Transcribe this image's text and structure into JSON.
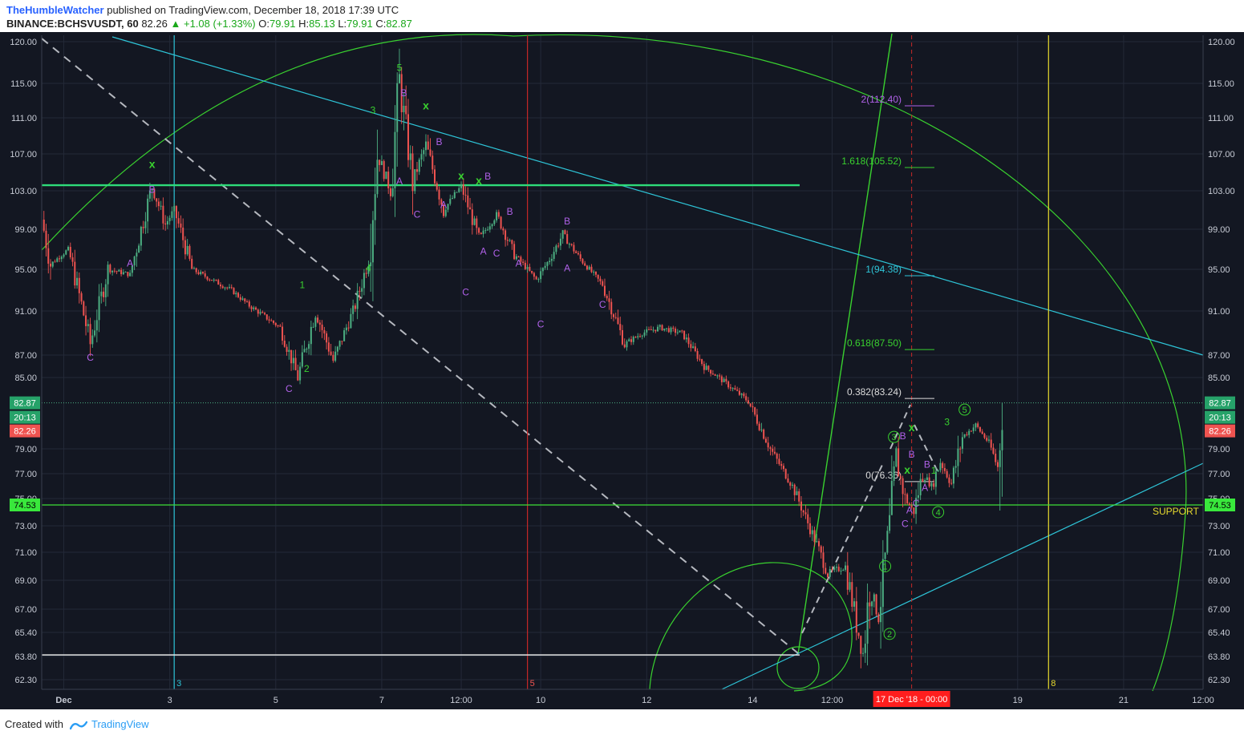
{
  "header": {
    "author": "TheHumbleWatcher",
    "published": "published on TradingView.com, December 18, 2018 17:39 UTC",
    "symbol": "BINANCE:BCHSVUSDT, 60",
    "last": "82.26",
    "change": "▲ +1.08 (+1.33%)",
    "o_label": "O:",
    "o": "79.91",
    "h_label": "H:",
    "h": "85.13",
    "l_label": "L:",
    "l": "79.91",
    "c_label": "C:",
    "c": "82.87"
  },
  "footer": {
    "created_with": "Created with",
    "brand": "TradingView"
  },
  "colors": {
    "up": "#4caf82",
    "down": "#ef5350",
    "background": "#131722",
    "fib_green": "#39d12f",
    "cyan": "#2ec5d8",
    "purple": "#b061e8",
    "yellow": "#e6d92e"
  },
  "chart_data": {
    "type": "candlestick",
    "title": "",
    "symbol": "BINANCE:BCHSVUSDT",
    "timeframe": "60",
    "xlabel": "",
    "ylabel": "",
    "ylim": [
      61.7,
      121
    ],
    "grid": true,
    "y_ticks": [
      "120.00",
      "115.00",
      "111.00",
      "107.00",
      "103.00",
      "99.00",
      "95.00",
      "91.00",
      "87.00",
      "85.00",
      "79.00",
      "77.00",
      "75.00",
      "73.00",
      "71.00",
      "69.00",
      "67.00",
      "65.40",
      "63.80",
      "62.30"
    ],
    "x_ticks": [
      "Dec",
      "3",
      "5",
      "7",
      "12:00",
      "10",
      "12",
      "14",
      "12:00",
      "19",
      "21",
      "12:00"
    ],
    "x_cursor_label": "17 Dec '18 - 00:00",
    "price_labels": {
      "close": "82.87",
      "countdown": "20:13",
      "last": "82.26",
      "support": "74.53"
    },
    "support_label": "SUPPORT",
    "vline_labels": [
      "3",
      "5",
      "8"
    ],
    "fib_levels": [
      {
        "ratio": "2",
        "value": 112.4,
        "label": "2(112.40)"
      },
      {
        "ratio": "1.618",
        "value": 105.52,
        "label": "1.618(105.52)"
      },
      {
        "ratio": "1",
        "value": 94.38,
        "label": "1(94.38)"
      },
      {
        "ratio": "0.618",
        "value": 87.5,
        "label": "0.618(87.50)"
      },
      {
        "ratio": "0.382",
        "value": 83.24,
        "label": "0.382(83.24)"
      },
      {
        "ratio": "0",
        "value": 76.36,
        "label": "0(76.36)"
      }
    ],
    "horizontal_levels": [
      {
        "name": "resistance",
        "value": 103.6
      },
      {
        "name": "support",
        "value": 74.53
      },
      {
        "name": "low",
        "value": 63.9
      }
    ],
    "price_path": [
      {
        "date": "2018-11-30 14:00",
        "price": 100.0
      },
      {
        "date": "2018-11-30 18:00",
        "price": 95.5
      },
      {
        "date": "2018-12-01 02:00",
        "price": 97.0
      },
      {
        "date": "2018-12-01 12:00",
        "price": 88.0
      },
      {
        "date": "2018-12-01 20:00",
        "price": 95.0
      },
      {
        "date": "2018-12-02 06:00",
        "price": 94.5
      },
      {
        "date": "2018-12-02 16:00",
        "price": 103.5
      },
      {
        "date": "2018-12-02 22:00",
        "price": 99.5
      },
      {
        "date": "2018-12-03 02:00",
        "price": 101.0
      },
      {
        "date": "2018-12-03 10:00",
        "price": 95.0
      },
      {
        "date": "2018-12-04 04:00",
        "price": 93.0
      },
      {
        "date": "2018-12-04 12:00",
        "price": 91.5
      },
      {
        "date": "2018-12-05 02:00",
        "price": 89.5
      },
      {
        "date": "2018-12-05 10:00",
        "price": 85.0
      },
      {
        "date": "2018-12-05 18:00",
        "price": 91.0
      },
      {
        "date": "2018-12-06 02:00",
        "price": 86.5
      },
      {
        "date": "2018-12-06 12:00",
        "price": 91.5
      },
      {
        "date": "2018-12-06 18:00",
        "price": 96.0
      },
      {
        "date": "2018-12-06 22:00",
        "price": 107.0
      },
      {
        "date": "2018-12-07 04:00",
        "price": 103.0
      },
      {
        "date": "2018-12-07 08:00",
        "price": 115.0
      },
      {
        "date": "2018-12-07 14:00",
        "price": 104.0
      },
      {
        "date": "2018-12-07 20:00",
        "price": 108.0
      },
      {
        "date": "2018-12-08 04:00",
        "price": 101.0
      },
      {
        "date": "2018-12-08 12:00",
        "price": 103.5
      },
      {
        "date": "2018-12-08 20:00",
        "price": 98.0
      },
      {
        "date": "2018-12-09 04:00",
        "price": 100.5
      },
      {
        "date": "2018-12-09 12:00",
        "price": 96.5
      },
      {
        "date": "2018-12-09 22:00",
        "price": 94.0
      },
      {
        "date": "2018-12-10 04:00",
        "price": 96.0
      },
      {
        "date": "2018-12-10 10:00",
        "price": 98.5
      },
      {
        "date": "2018-12-10 18:00",
        "price": 96.0
      },
      {
        "date": "2018-12-11 04:00",
        "price": 93.5
      },
      {
        "date": "2018-12-11 14:00",
        "price": 88.0
      },
      {
        "date": "2018-12-11 22:00",
        "price": 89.0
      },
      {
        "date": "2018-12-12 06:00",
        "price": 89.5
      },
      {
        "date": "2018-12-12 16:00",
        "price": 89.0
      },
      {
        "date": "2018-12-13 02:00",
        "price": 86.0
      },
      {
        "date": "2018-12-13 12:00",
        "price": 84.5
      },
      {
        "date": "2018-12-13 22:00",
        "price": 83.0
      },
      {
        "date": "2018-12-14 08:00",
        "price": 79.0
      },
      {
        "date": "2018-12-14 18:00",
        "price": 76.0
      },
      {
        "date": "2018-12-15 04:00",
        "price": 72.0
      },
      {
        "date": "2018-12-15 10:00",
        "price": 69.5
      },
      {
        "date": "2018-12-15 18:00",
        "price": 70.0
      },
      {
        "date": "2018-12-15 23:00",
        "price": 66.0
      },
      {
        "date": "2018-12-16 02:00",
        "price": 64.0
      },
      {
        "date": "2018-12-16 05:00",
        "price": 68.5
      },
      {
        "date": "2018-12-16 09:00",
        "price": 66.5
      },
      {
        "date": "2018-12-16 14:00",
        "price": 73.0
      },
      {
        "date": "2018-12-16 17:00",
        "price": 78.0
      },
      {
        "date": "2018-12-16 21:00",
        "price": 75.0
      },
      {
        "date": "2018-12-17 01:00",
        "price": 74.0
      },
      {
        "date": "2018-12-17 05:00",
        "price": 77.0
      },
      {
        "date": "2018-12-17 09:00",
        "price": 76.0
      },
      {
        "date": "2018-12-17 13:00",
        "price": 78.0
      },
      {
        "date": "2018-12-17 18:00",
        "price": 76.2
      },
      {
        "date": "2018-12-17 23:00",
        "price": 80.0
      },
      {
        "date": "2018-12-18 05:00",
        "price": 81.0
      },
      {
        "date": "2018-12-18 11:00",
        "price": 79.5
      },
      {
        "date": "2018-12-18 15:00",
        "price": 77.5
      },
      {
        "date": "2018-12-18 17:00",
        "price": 82.9
      }
    ],
    "wave_labels": [
      {
        "text": "5",
        "date": "2018-12-07 08:00",
        "price": 116.5
      },
      {
        "text": "3",
        "date": "2018-12-06 20:00",
        "price": 111.5
      },
      {
        "text": "4",
        "date": "2018-12-06 18:00",
        "price": 94.8
      },
      {
        "text": "1",
        "date": "2018-12-05 12:00",
        "price": 93.2
      },
      {
        "text": "2",
        "date": "2018-12-05 14:00",
        "price": 85.5
      },
      {
        "text": "A",
        "date": "2018-12-02 06:00",
        "price": 95.3
      },
      {
        "text": "B",
        "date": "2018-12-02 16:00",
        "price": 102.8
      },
      {
        "text": "C",
        "date": "2018-12-01 12:00",
        "price": 86.5
      },
      {
        "text": "C",
        "date": "2018-12-05 06:00",
        "price": 83.8
      },
      {
        "text": "B",
        "date": "2018-12-07 10:00",
        "price": 113.5
      },
      {
        "text": "A",
        "date": "2018-12-07 08:00",
        "price": 103.7
      },
      {
        "text": "C",
        "date": "2018-12-07 16:00",
        "price": 100.2
      },
      {
        "text": "B",
        "date": "2018-12-08 02:00",
        "price": 108.0
      },
      {
        "text": "A",
        "date": "2018-12-08 04:00",
        "price": 101.2
      },
      {
        "text": "C",
        "date": "2018-12-08 14:00",
        "price": 92.5
      },
      {
        "text": "B",
        "date": "2018-12-09 00:00",
        "price": 104.2
      },
      {
        "text": "A",
        "date": "2018-12-08 22:00",
        "price": 96.5
      },
      {
        "text": "C",
        "date": "2018-12-09 04:00",
        "price": 96.3
      },
      {
        "text": "B",
        "date": "2018-12-09 10:00",
        "price": 100.5
      },
      {
        "text": "A",
        "date": "2018-12-09 14:00",
        "price": 95.3
      },
      {
        "text": "C",
        "date": "2018-12-10 00:00",
        "price": 89.5
      },
      {
        "text": "B",
        "date": "2018-12-10 12:00",
        "price": 99.5
      },
      {
        "text": "A",
        "date": "2018-12-10 12:00",
        "price": 94.8
      },
      {
        "text": "C",
        "date": "2018-12-11 04:00",
        "price": 91.3
      },
      {
        "text": "B",
        "date": "2018-12-16 20:00",
        "price": 79.8
      },
      {
        "text": "A",
        "date": "2018-12-16 23:00",
        "price": 73.9
      },
      {
        "text": "C",
        "date": "2018-12-16 21:00",
        "price": 72.9
      },
      {
        "text": "B",
        "date": "2018-12-17 00:00",
        "price": 78.3
      },
      {
        "text": "B",
        "date": "2018-12-17 07:00",
        "price": 77.5
      },
      {
        "text": "A",
        "date": "2018-12-17 06:00",
        "price": 75.6
      },
      {
        "text": "C",
        "date": "2018-12-17 02:00",
        "price": 74.4
      },
      {
        "text": "1",
        "date": "2018-12-17 10:00",
        "price": 77.0
      },
      {
        "text": "3",
        "date": "2018-12-17 16:00",
        "price": 81.0
      }
    ],
    "circled_labels": [
      "1",
      "2",
      "3",
      "4",
      "5"
    ],
    "x_markers": [
      {
        "date": "2018-12-02 16:00",
        "price": 105.5
      },
      {
        "date": "2018-12-07 20:00",
        "price": 112.0
      },
      {
        "date": "2018-12-08 12:00",
        "price": 104.2
      },
      {
        "date": "2018-12-08 20:00",
        "price": 103.7
      },
      {
        "date": "2018-12-16 22:00",
        "price": 77.0
      },
      {
        "date": "2018-12-17 00:00",
        "price": 80.5
      }
    ]
  }
}
